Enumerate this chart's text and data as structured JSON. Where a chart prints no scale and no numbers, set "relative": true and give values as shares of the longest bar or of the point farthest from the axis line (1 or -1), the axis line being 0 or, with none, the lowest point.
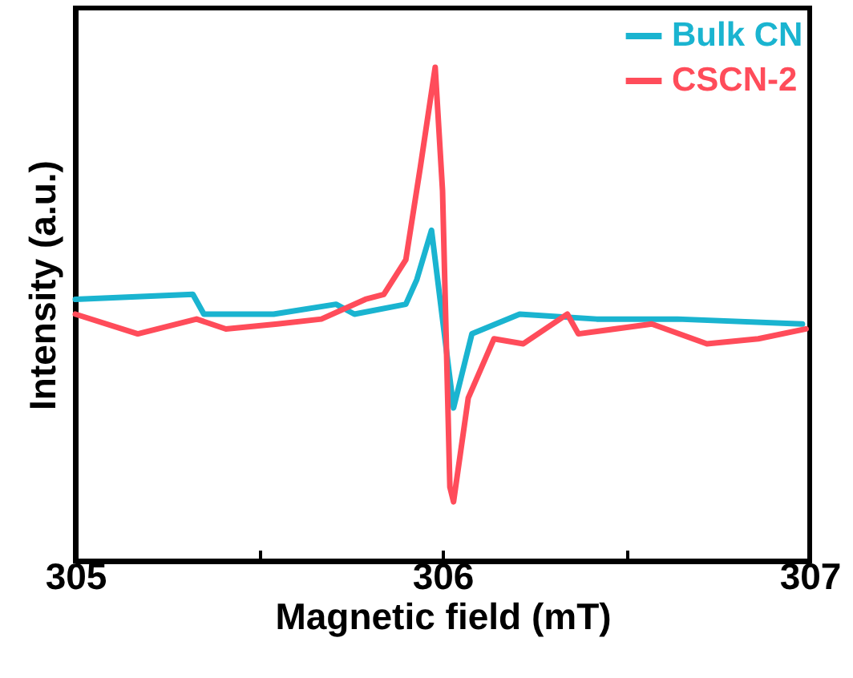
{
  "chart_data": {
    "type": "line",
    "xlabel": "Magnetic field (mT)",
    "ylabel": "Intensity (a.u.)",
    "relative": true,
    "xlim": [
      305,
      307
    ],
    "xticks": [
      305,
      {
        "value": 305.5,
        "label": null
      },
      306,
      {
        "value": 306.5,
        "label": null
      },
      307
    ],
    "grid": false,
    "legend": "top right",
    "marker": "none",
    "line_style": "solid",
    "series": [
      {
        "name": "Bulk CN",
        "color": "#1ab4d0",
        "x": [
          305.0,
          305.32,
          305.35,
          305.54,
          305.71,
          305.76,
          305.9,
          305.93,
          305.97,
          306.03,
          306.08,
          306.21,
          306.42,
          306.64,
          306.98
        ],
        "values": [
          0.53,
          0.54,
          0.5,
          0.5,
          0.52,
          0.5,
          0.52,
          0.57,
          0.67,
          0.31,
          0.46,
          0.5,
          0.49,
          0.49,
          0.48
        ]
      },
      {
        "name": "CSCN-2",
        "color": "#ff4c5a",
        "x": [
          305.0,
          305.17,
          305.33,
          305.41,
          305.55,
          305.67,
          305.79,
          305.84,
          305.9,
          305.94,
          305.98,
          306.0,
          306.02,
          306.03,
          306.07,
          306.14,
          306.22,
          306.34,
          306.37,
          306.57,
          306.72,
          306.86,
          306.99
        ],
        "values": [
          0.5,
          0.46,
          0.49,
          0.47,
          0.48,
          0.49,
          0.53,
          0.54,
          0.61,
          0.8,
          1.0,
          0.75,
          0.15,
          0.12,
          0.33,
          0.45,
          0.44,
          0.5,
          0.46,
          0.48,
          0.44,
          0.45,
          0.47
        ]
      }
    ]
  }
}
